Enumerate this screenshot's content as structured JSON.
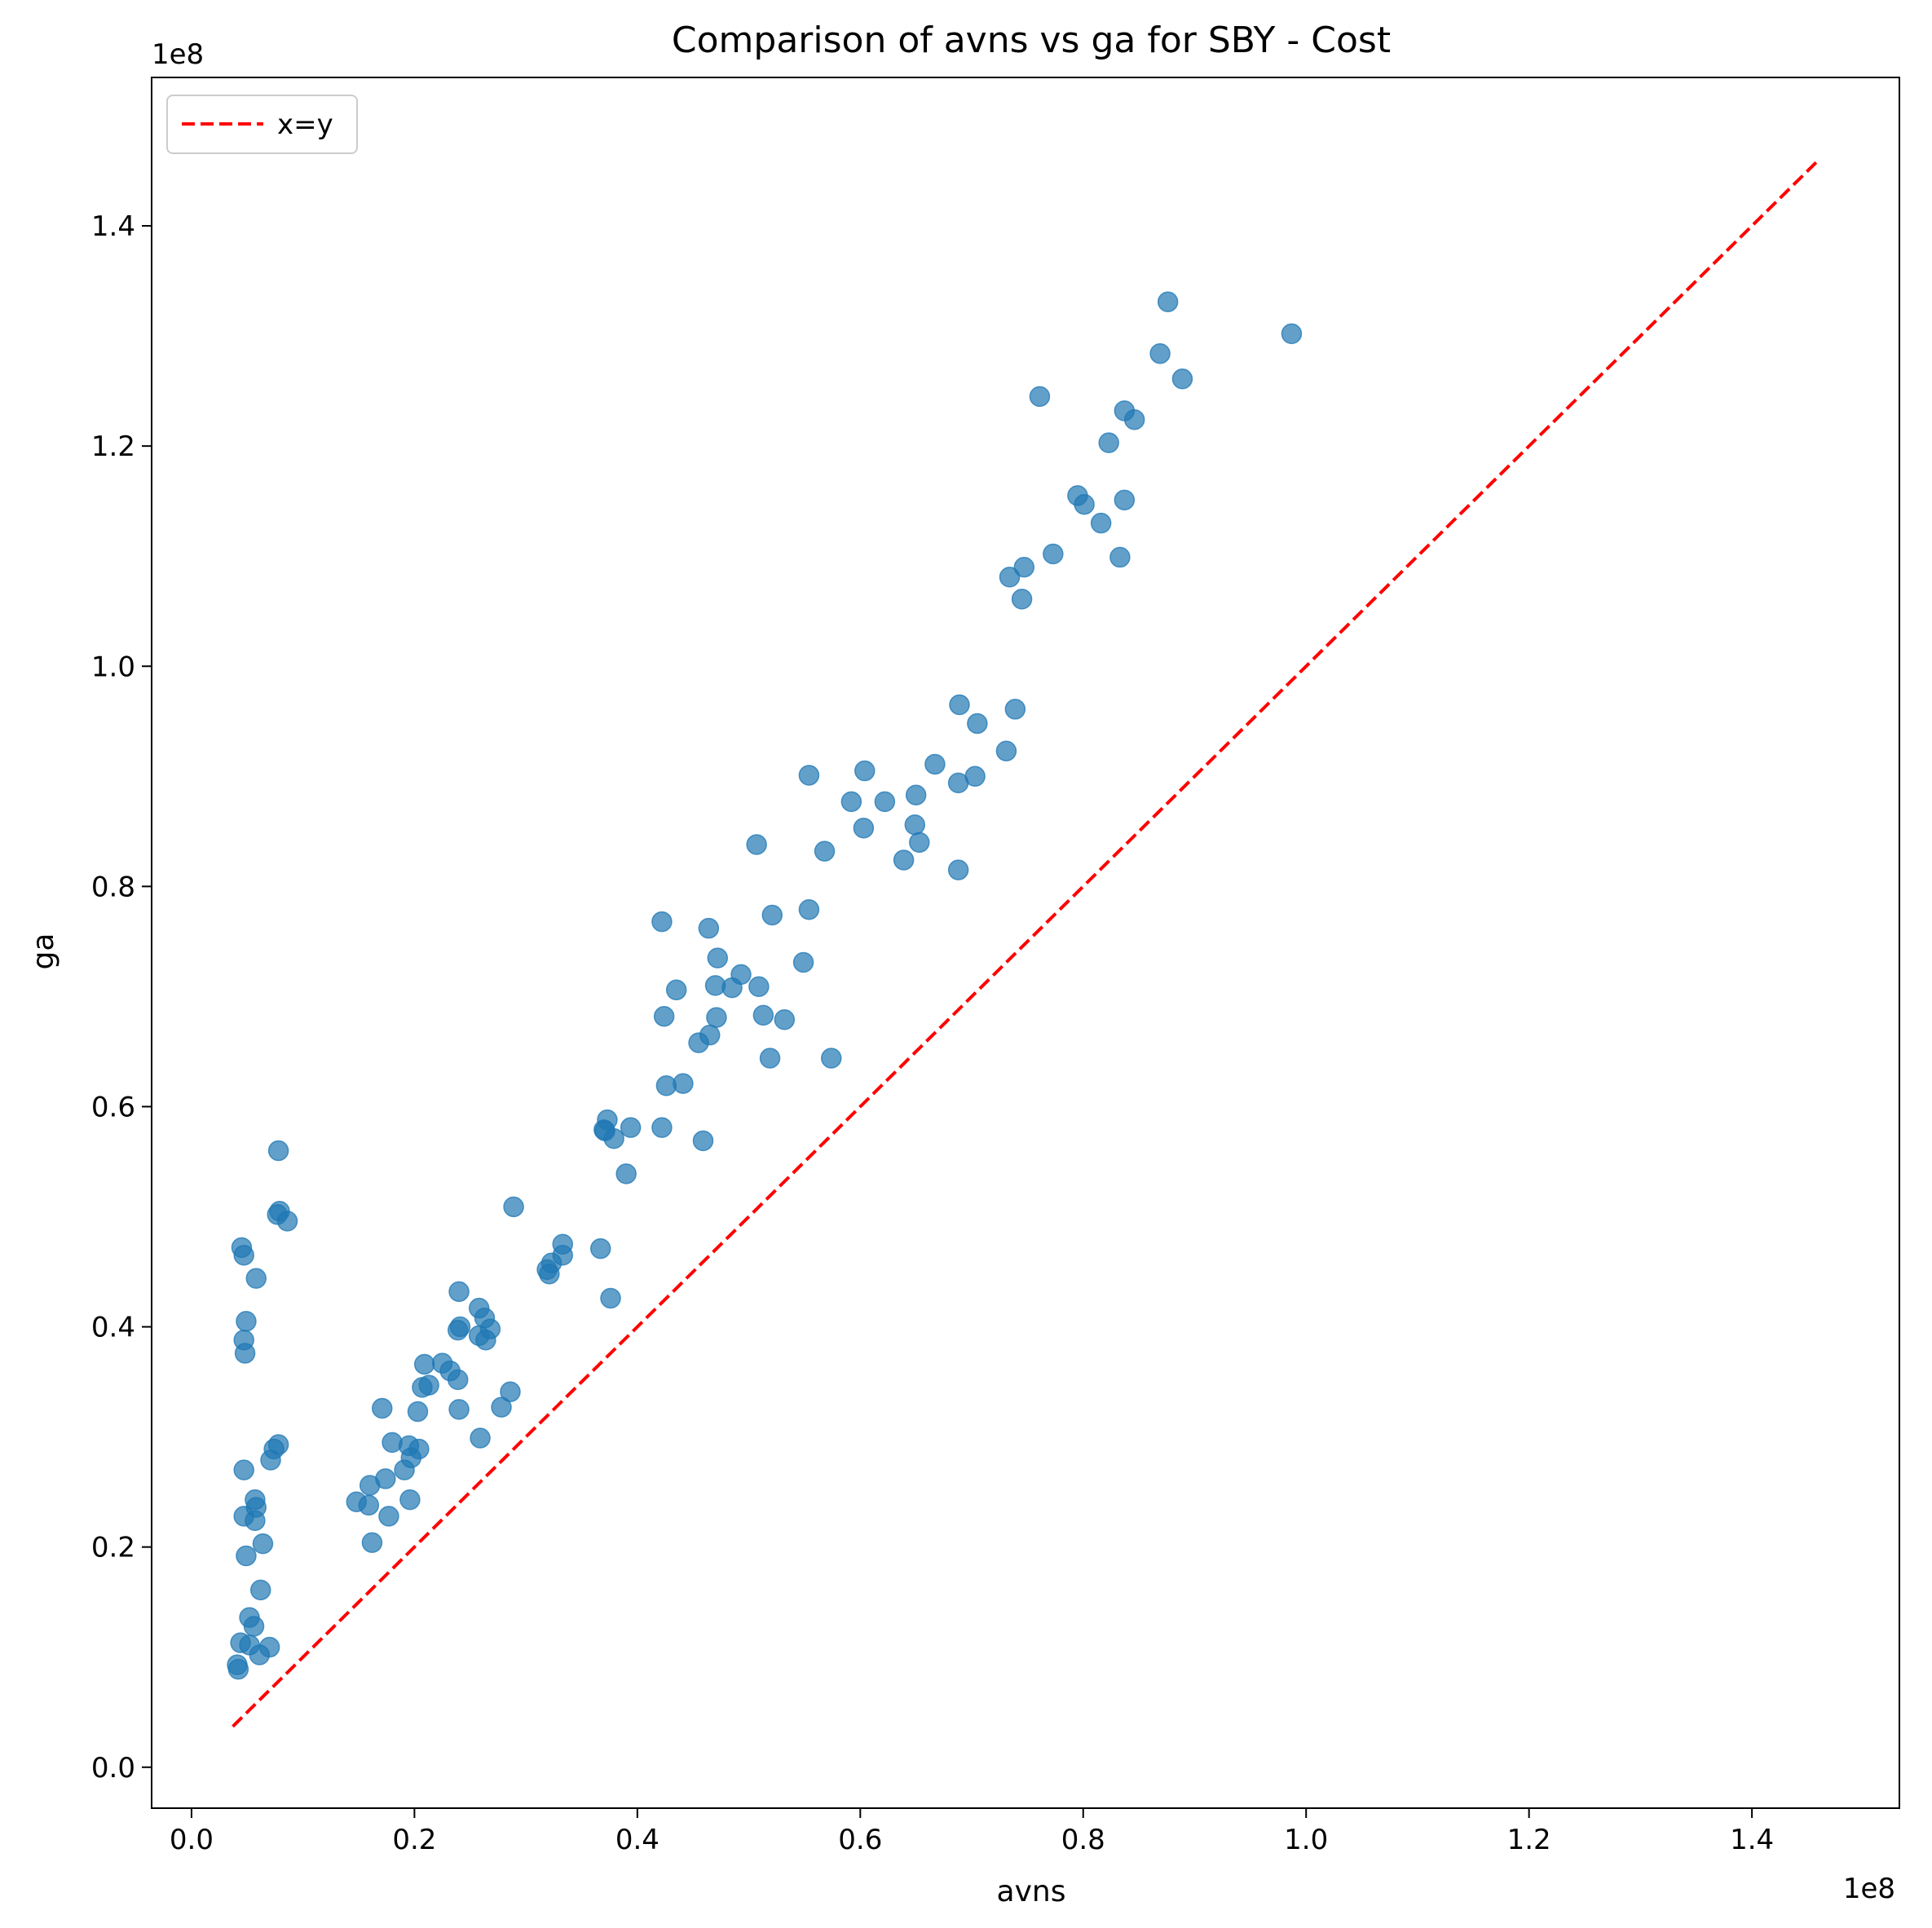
{
  "chart_data": {
    "type": "scatter",
    "title": "Comparison of avns vs ga for SBY - Cost",
    "xlabel": "avns",
    "ylabel": "ga",
    "x_multiplier": "1e8",
    "y_multiplier": "1e8",
    "xlim": [
      -0.0358,
      1.5323
    ],
    "ylim": [
      -0.0372,
      1.5348
    ],
    "x_ticks": [
      0.0,
      0.2,
      0.4,
      0.6,
      0.8,
      1.0,
      1.2,
      1.4
    ],
    "x_tick_labels": [
      "0.0",
      "0.2",
      "0.4",
      "0.6",
      "0.8",
      "1.0",
      "1.2",
      "1.4"
    ],
    "y_ticks": [
      0.0,
      0.2,
      0.4,
      0.6,
      0.8,
      1.0,
      1.2,
      1.4
    ],
    "y_tick_labels": [
      "0.0",
      "0.2",
      "0.4",
      "0.6",
      "0.8",
      "1.0",
      "1.2",
      "1.4"
    ],
    "grid": false,
    "legend": {
      "position": "top-left",
      "entries": [
        "x=y"
      ]
    },
    "colors": {
      "points": "#1f77b4",
      "reference_line": "#ff0000"
    },
    "reference_line": {
      "name": "x=y",
      "style": "dashed",
      "x": [
        0.037,
        1.46
      ],
      "y": [
        0.037,
        1.46
      ]
    },
    "series": [
      {
        "marker": "circle",
        "x": [
          0.876,
          0.987,
          0.869,
          0.889,
          0.761,
          0.837,
          0.846,
          0.823,
          0.795,
          0.801,
          0.837,
          0.816,
          0.773,
          0.833,
          0.747,
          0.734,
          0.745,
          0.689,
          0.739,
          0.705,
          0.731,
          0.703,
          0.667,
          0.688,
          0.554,
          0.604,
          0.592,
          0.622,
          0.65,
          0.649,
          0.603,
          0.653,
          0.507,
          0.568,
          0.639,
          0.688,
          0.422,
          0.464,
          0.521,
          0.554,
          0.472,
          0.549,
          0.493,
          0.435,
          0.47,
          0.485,
          0.509,
          0.424,
          0.471,
          0.513,
          0.532,
          0.465,
          0.455,
          0.519,
          0.574,
          0.441,
          0.426,
          0.373,
          0.37,
          0.394,
          0.371,
          0.379,
          0.422,
          0.459,
          0.39,
          0.289,
          0.333,
          0.367,
          0.323,
          0.333,
          0.319,
          0.321,
          0.376,
          0.24,
          0.258,
          0.263,
          0.239,
          0.241,
          0.268,
          0.258,
          0.264,
          0.209,
          0.225,
          0.232,
          0.239,
          0.213,
          0.207,
          0.286,
          0.171,
          0.203,
          0.24,
          0.278,
          0.18,
          0.195,
          0.204,
          0.197,
          0.174,
          0.191,
          0.259,
          0.148,
          0.16,
          0.159,
          0.196,
          0.177,
          0.162,
          0.078,
          0.079,
          0.077,
          0.086,
          0.045,
          0.047,
          0.058,
          0.049,
          0.047,
          0.048,
          0.078,
          0.074,
          0.071,
          0.047,
          0.057,
          0.058,
          0.047,
          0.057,
          0.064,
          0.049,
          0.062,
          0.052,
          0.056,
          0.044,
          0.052,
          0.07,
          0.061,
          0.041,
          0.042
        ],
        "y": [
          1.331,
          1.302,
          1.284,
          1.261,
          1.245,
          1.232,
          1.224,
          1.203,
          1.155,
          1.147,
          1.151,
          1.13,
          1.102,
          1.099,
          1.09,
          1.081,
          1.061,
          0.965,
          0.961,
          0.948,
          0.923,
          0.9,
          0.911,
          0.894,
          0.901,
          0.905,
          0.877,
          0.877,
          0.883,
          0.856,
          0.853,
          0.84,
          0.838,
          0.832,
          0.824,
          0.815,
          0.768,
          0.762,
          0.774,
          0.779,
          0.735,
          0.731,
          0.72,
          0.706,
          0.71,
          0.708,
          0.709,
          0.682,
          0.681,
          0.683,
          0.679,
          0.665,
          0.658,
          0.644,
          0.644,
          0.621,
          0.619,
          0.588,
          0.579,
          0.581,
          0.578,
          0.571,
          0.581,
          0.569,
          0.539,
          0.509,
          0.475,
          0.471,
          0.458,
          0.465,
          0.452,
          0.448,
          0.426,
          0.432,
          0.417,
          0.408,
          0.397,
          0.4,
          0.398,
          0.392,
          0.388,
          0.366,
          0.367,
          0.36,
          0.352,
          0.347,
          0.345,
          0.341,
          0.326,
          0.323,
          0.325,
          0.327,
          0.295,
          0.292,
          0.289,
          0.281,
          0.262,
          0.27,
          0.299,
          0.241,
          0.256,
          0.238,
          0.243,
          0.228,
          0.204,
          0.56,
          0.505,
          0.502,
          0.496,
          0.472,
          0.465,
          0.444,
          0.405,
          0.388,
          0.376,
          0.293,
          0.289,
          0.279,
          0.27,
          0.243,
          0.236,
          0.228,
          0.224,
          0.203,
          0.192,
          0.161,
          0.136,
          0.128,
          0.113,
          0.111,
          0.109,
          0.102,
          0.093,
          0.089
        ]
      }
    ]
  }
}
